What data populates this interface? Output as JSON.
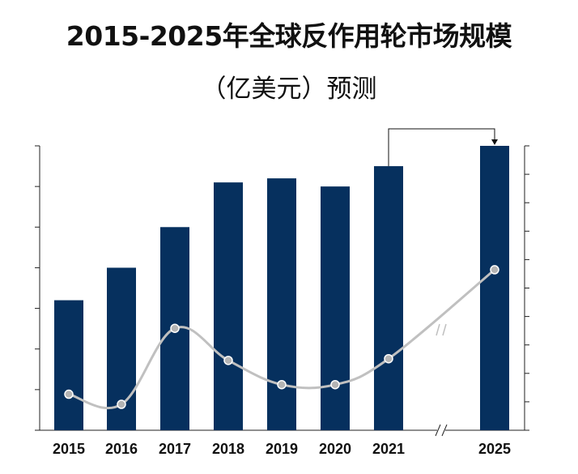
{
  "title": {
    "line1": "2015-2025年全球反作用轮市场规模",
    "line2": "（亿美元）预测"
  },
  "colors": {
    "bar": "#06305E",
    "line": "#C0C0C0",
    "marker": "#B4B4B4",
    "axis": "#222222"
  },
  "chart_data": {
    "type": "bar",
    "categories": [
      "2015",
      "2016",
      "2017",
      "2018",
      "2019",
      "2020",
      "2021",
      "2025"
    ],
    "series": [
      {
        "type": "bar",
        "values": [
          32,
          40,
          50,
          61,
          62,
          60,
          65,
          70
        ],
        "ylim": [
          0,
          70
        ]
      },
      {
        "type": "line",
        "values": [
          2.9,
          1.1,
          14.6,
          8.9,
          4.6,
          4.6,
          9.2,
          25.0
        ],
        "ylim": [
          -3.5,
          47
        ]
      }
    ],
    "axis_break": "2021–2025",
    "annotation": "arrow from 2021 bar to 2025 bar",
    "grid": false,
    "legend": "none"
  }
}
